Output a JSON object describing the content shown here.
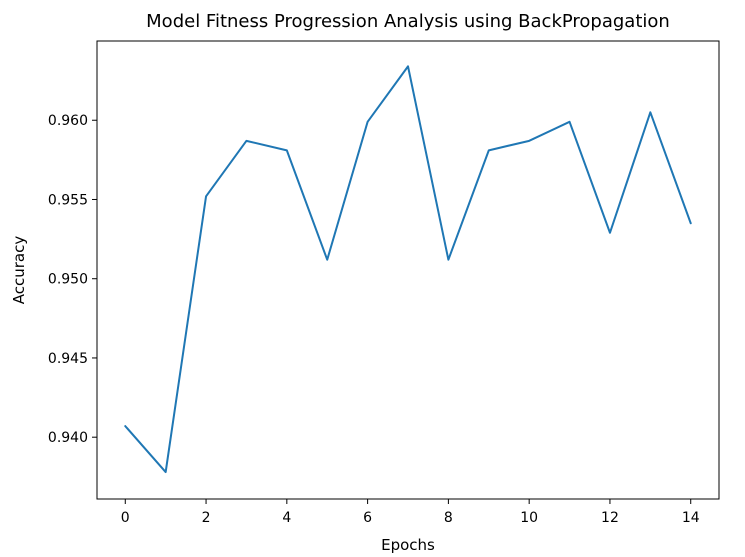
{
  "chart_data": {
    "type": "line",
    "title": "Model Fitness Progression Analysis using BackPropagation",
    "xlabel": "Epochs",
    "ylabel": "Accuracy",
    "xlim": [
      -0.7,
      14.7
    ],
    "ylim": [
      0.9361,
      0.965
    ],
    "xticks": [
      0,
      2,
      4,
      6,
      8,
      10,
      12,
      14
    ],
    "yticks": [
      0.94,
      0.945,
      0.95,
      0.955,
      0.96
    ],
    "ytick_labels": [
      "0.940",
      "0.945",
      "0.950",
      "0.955",
      "0.960"
    ],
    "grid": false,
    "series": [
      {
        "color": "#1f77b4",
        "x": [
          0,
          1,
          2,
          3,
          4,
          5,
          6,
          7,
          8,
          9,
          10,
          11,
          12,
          13,
          14
        ],
        "y": [
          0.9407,
          0.9378,
          0.9552,
          0.9587,
          0.9581,
          0.9512,
          0.9599,
          0.9634,
          0.9512,
          0.9581,
          0.9587,
          0.9599,
          0.9529,
          0.9605,
          0.9535
        ]
      }
    ]
  }
}
